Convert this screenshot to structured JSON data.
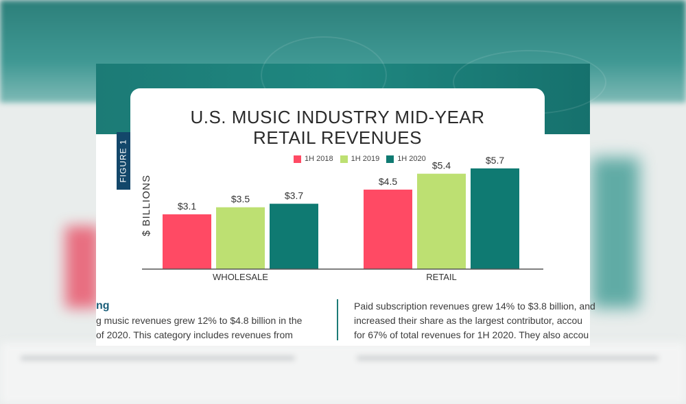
{
  "figure_label": "FIGURE 1",
  "left_column": {
    "heading": "ng",
    "lines": [
      "g music revenues grew 12% to $4.8 billion in the",
      "of 2020. This category includes revenues from"
    ]
  },
  "right_column": {
    "lines": [
      "Paid subscription revenues grew 14% to $3.8 billion, and",
      "increased their share as the largest contributor, accou",
      "for 67% of total revenues for 1H 2020. They also accou"
    ]
  },
  "colors": {
    "1H 2018": "#ff4a64",
    "1H 2019": "#bde072",
    "1H 2020": "#0f7a72"
  },
  "chart_data": {
    "type": "bar",
    "title_lines": [
      "U.S. MUSIC INDUSTRY MID-YEAR",
      "RETAIL REVENUES"
    ],
    "categories": [
      "WHOLESALE",
      "RETAIL"
    ],
    "series": [
      {
        "name": "1H 2018",
        "values": [
          3.1,
          4.5
        ]
      },
      {
        "name": "1H 2019",
        "values": [
          3.5,
          5.4
        ]
      },
      {
        "name": "1H 2020",
        "values": [
          3.7,
          5.7
        ]
      }
    ],
    "value_labels": [
      [
        "$3.1",
        "$4.5"
      ],
      [
        "$3.5",
        "$5.4"
      ],
      [
        "$3.7",
        "$5.7"
      ]
    ],
    "xlabel": "",
    "ylabel": "$ BILLIONS",
    "ylim": [
      0,
      6
    ],
    "grid": false,
    "legend_position": "top-center"
  }
}
